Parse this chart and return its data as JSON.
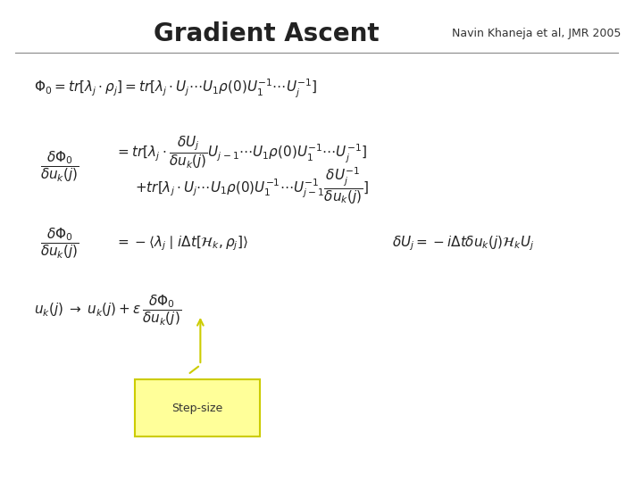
{
  "title": "Gradient Ascent",
  "subtitle": "Navin Khaneja et al, JMR 2005",
  "background_color": "#ffffff",
  "title_fontsize": 20,
  "subtitle_fontsize": 9,
  "line_color": "#000000",
  "eq1": "$\\Phi_0 = tr[\\lambda_j \\cdot \\rho_j] = tr[\\lambda_j \\cdot U_j \\cdots U_1 \\rho(0) U_1^{-1} \\cdots U_j^{-1}]$",
  "eq2_lhs": "$\\dfrac{\\delta\\Phi_0}{\\delta u_k(j)}$",
  "eq2_rhs1": "$= tr[\\lambda_j \\cdot \\dfrac{\\delta U_j}{\\delta u_k(j)} U_{j-1} \\cdots U_1 \\rho(0) U_1^{-1} \\cdots U_j^{-1}]$",
  "eq2_rhs2": "$+ tr[\\lambda_j \\cdot U_j \\cdots U_1 \\rho(0) U_1^{-1} \\cdots U_{j-1}^{-1} \\dfrac{\\delta U_j^{-1}}{\\delta u_k(j)}]$",
  "eq3_lhs": "$\\dfrac{\\delta\\Phi_0}{\\delta u_k(j)}$",
  "eq3_rhs": "$= -\\langle \\lambda_j \\mid i\\Delta t[\\mathcal{H}_k, \\rho_j]\\rangle$",
  "eq4": "$\\delta U_j = -i\\Delta t \\delta u_k(j) \\mathcal{H}_k U_j$",
  "eq5": "$u_k(j) \\;\\rightarrow\\; u_k(j) + \\epsilon\\, \\dfrac{\\delta\\Phi_0}{\\delta u_k(j)}$",
  "callout_text": "Step-size",
  "callout_box_color": "#ffff99",
  "callout_line_color": "#cccc00",
  "callout_border_color": "#cccc00"
}
